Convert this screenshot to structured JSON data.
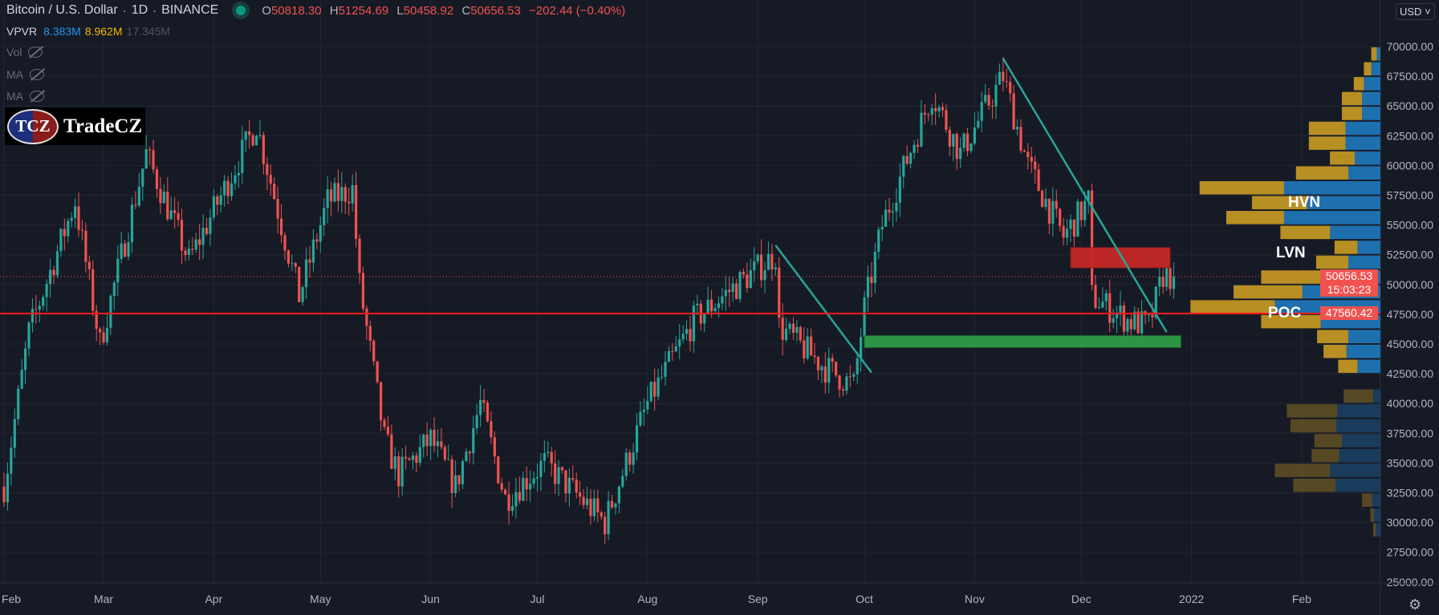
{
  "header": {
    "title": "Bitcoin / U.S. Dollar",
    "interval": "1D",
    "exchange": "BINANCE",
    "ohlc": [
      {
        "k": "O",
        "v": "50818.30"
      },
      {
        "k": "H",
        "v": "51254.69"
      },
      {
        "k": "L",
        "v": "50458.92"
      },
      {
        "k": "C",
        "v": "50656.53"
      }
    ],
    "change": "−202.44 (−0.40%)"
  },
  "indicators": {
    "vpvr_label": "VPVR",
    "vpvr_up": "8.383M",
    "vpvr_down": "8.962M",
    "vpvr_total": "17.345M",
    "vol": "Vol",
    "ma1": "MA",
    "ma2": "MA"
  },
  "logo": {
    "mark": "TCZ",
    "name": "TradeCZ"
  },
  "currency": "USD",
  "price_labels": {
    "last": "50656.53",
    "countdown": "15:03:23",
    "level": "47560.42"
  },
  "vp_labels": {
    "hvn": "HVN",
    "lvn": "LVN",
    "poc": "POC"
  },
  "colors": {
    "up": "#26a69a",
    "down": "#ef5350",
    "vp_up": "#1e6fae",
    "vp_down": "#b88f22",
    "bg": "#161a25"
  },
  "chart_data": {
    "type": "candlestick",
    "y_ticks": [
      25000,
      27500,
      30000,
      32500,
      35000,
      37500,
      40000,
      42500,
      45000,
      47500,
      50000,
      52500,
      55000,
      57500,
      60000,
      62500,
      65000,
      67500,
      70000
    ],
    "y_range": [
      24500,
      72500
    ],
    "x_ticks": [
      {
        "label": "Feb",
        "day": 0
      },
      {
        "label": "Mar",
        "day": 28
      },
      {
        "label": "Apr",
        "day": 59
      },
      {
        "label": "May",
        "day": 89
      },
      {
        "label": "Jun",
        "day": 120
      },
      {
        "label": "Jul",
        "day": 150
      },
      {
        "label": "Aug",
        "day": 181
      },
      {
        "label": "Sep",
        "day": 212
      },
      {
        "label": "Oct",
        "day": 242
      },
      {
        "label": "Nov",
        "day": 273
      },
      {
        "label": "Dec",
        "day": 303
      },
      {
        "label": "2022",
        "day": 334
      },
      {
        "label": "Feb",
        "day": 365
      }
    ],
    "price_path": [
      [
        0,
        33000
      ],
      [
        7,
        46000
      ],
      [
        20,
        57000
      ],
      [
        27,
        45000
      ],
      [
        40,
        61000
      ],
      [
        52,
        52000
      ],
      [
        71,
        63500
      ],
      [
        83,
        49000
      ],
      [
        91,
        57000
      ],
      [
        98,
        58000
      ],
      [
        100,
        50000
      ],
      [
        107,
        37000
      ],
      [
        111,
        34000
      ],
      [
        120,
        37000
      ],
      [
        127,
        33000
      ],
      [
        134,
        40000
      ],
      [
        141,
        32000
      ],
      [
        152,
        35000
      ],
      [
        169,
        30000
      ],
      [
        181,
        40000
      ],
      [
        194,
        47000
      ],
      [
        202,
        49000
      ],
      [
        217,
        52500
      ],
      [
        218,
        46500
      ],
      [
        231,
        43000
      ],
      [
        239,
        41500
      ],
      [
        242,
        48000
      ],
      [
        247,
        55000
      ],
      [
        261,
        66000
      ],
      [
        269,
        61000
      ],
      [
        281,
        67500
      ],
      [
        288,
        60000
      ],
      [
        298,
        54000
      ],
      [
        305,
        57000
      ],
      [
        306,
        49000
      ],
      [
        316,
        47000
      ],
      [
        322,
        46500
      ],
      [
        326,
        50800
      ],
      [
        329,
        50656
      ]
    ],
    "volume_profile": {
      "row_size": 1250,
      "dim_below": 41250,
      "rows": [
        [
          69375,
          4,
          6
        ],
        [
          68125,
          10,
          8
        ],
        [
          66875,
          18,
          11
        ],
        [
          65625,
          20,
          22
        ],
        [
          64375,
          20,
          22
        ],
        [
          63125,
          38,
          40
        ],
        [
          61875,
          38,
          40
        ],
        [
          60625,
          28,
          27
        ],
        [
          59375,
          35,
          57
        ],
        [
          58125,
          105,
          92
        ],
        [
          56875,
          80,
          60
        ],
        [
          55625,
          105,
          63
        ],
        [
          54375,
          55,
          54
        ],
        [
          53125,
          25,
          25
        ],
        [
          51875,
          35,
          35
        ],
        [
          50625,
          50,
          80
        ],
        [
          49375,
          85,
          75
        ],
        [
          48125,
          115,
          92
        ],
        [
          46875,
          65,
          65
        ],
        [
          45625,
          35,
          34
        ],
        [
          44375,
          37,
          25
        ],
        [
          43125,
          25,
          21
        ],
        [
          40625,
          8,
          32
        ],
        [
          39375,
          47,
          55
        ],
        [
          38125,
          48,
          50
        ],
        [
          36875,
          42,
          30
        ],
        [
          35625,
          45,
          30
        ],
        [
          34375,
          55,
          60
        ],
        [
          33125,
          49,
          46
        ],
        [
          31875,
          9,
          11
        ],
        [
          30625,
          7,
          4
        ],
        [
          29375,
          5,
          3
        ]
      ]
    },
    "levels": {
      "last": 50656.53,
      "horizontal": 47560.42
    },
    "zones": [
      {
        "type": "resistance",
        "from": 51400,
        "to": 53100,
        "day_from": 300,
        "day_to": 328
      },
      {
        "type": "support",
        "from": 44700,
        "to": 45700,
        "day_from": 242,
        "day_to": 331
      }
    ],
    "trendlines": [
      [
        [
          217,
          53300
        ],
        [
          244,
          42600
        ]
      ],
      [
        [
          281,
          69000
        ],
        [
          327,
          46000
        ]
      ]
    ]
  }
}
